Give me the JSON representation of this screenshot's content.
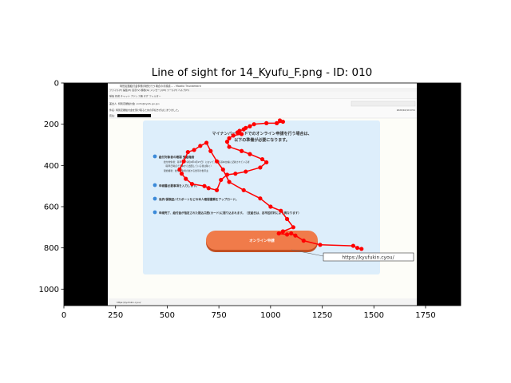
{
  "chart_data": {
    "type": "scatter",
    "title": "Line of sight for 14_Kyufu_F.png - ID: 010",
    "xlim": [
      0,
      1920
    ],
    "ylim": [
      1080,
      0
    ],
    "xticks": [
      0,
      250,
      500,
      750,
      1000,
      1250,
      1500,
      1750
    ],
    "yticks": [
      0,
      200,
      400,
      600,
      800,
      1000
    ],
    "grid": false,
    "series": [
      {
        "color": "#ff0000",
        "x": [
          1045,
          1060,
          1030,
          980,
          920,
          900,
          880,
          870,
          850,
          840,
          860,
          820,
          800,
          790,
          800,
          860,
          900,
          960,
          980,
          950,
          880,
          830,
          790,
          760,
          740,
          700,
          680,
          620,
          590,
          570,
          560,
          580,
          600,
          630,
          660,
          690,
          710,
          740,
          770,
          800,
          870,
          950,
          1000,
          1050,
          1080,
          1110,
          1060,
          1040,
          1080,
          1100,
          1120,
          1160,
          1240,
          1400,
          1420,
          1440
        ],
        "y": [
          182,
          188,
          195,
          195,
          200,
          210,
          218,
          225,
          232,
          240,
          248,
          255,
          268,
          285,
          310,
          330,
          345,
          370,
          385,
          410,
          430,
          440,
          445,
          470,
          520,
          510,
          500,
          490,
          465,
          440,
          420,
          380,
          335,
          325,
          305,
          290,
          330,
          380,
          420,
          480,
          520,
          560,
          600,
          620,
          660,
          700,
          720,
          730,
          735,
          730,
          740,
          765,
          785,
          790,
          800,
          805
        ]
      }
    ]
  },
  "stimulus": {
    "window_title": "特別定額給付金事務手続を行う場合の手順書… - Mozilla Thunderbird",
    "menu": "ファイル(F)  編集(E)  表示(V)  移動(G)  メッセージ(M)  ツール(T)  ヘルプ(H)",
    "toolbar": "受信  作成  チャット  アドレス帳  タグ  フィルター",
    "from": "差出人: 特別定額給付金 <info@kyufu.go.jp>",
    "subject": "件名: 特別定額給付金を受け取るための手続きがはじまりました。",
    "to": "宛先:",
    "date": "2020/10/19 9:51",
    "heading_line1": "マイナンバーカードでのオンライン申請を行う場合は、",
    "heading_line2": "以下の準備が必要になります。",
    "step1_title": "給付対象者の確認 受給権者",
    "step1_body1": "給付対象者：基準日（令和2年4月27日）において、住民基本台帳に記録されている者",
    "step1_body2": "（基準日時点で日本から出国している者は除く）",
    "step1_body3": "受給権者：給付対象者の属する世帯の世帯主",
    "step2": "申請書必要事項を入力します。",
    "step3": "免許/保険証/パスポートなどの本人確認書類をアップロード。",
    "step4": "申請完了、給付金が指定された振込口座(カード)に振り込まれます。（支給日は、各市区町村により異なります）",
    "button_label": "オンライン申請",
    "url_tooltip": "https://kyufukin.cyou/",
    "status_url": "https://kyufukin.cyou/"
  }
}
